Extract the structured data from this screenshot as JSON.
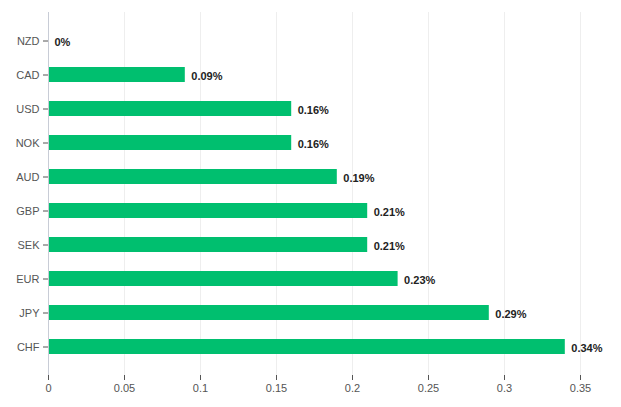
{
  "chart_data": {
    "type": "bar",
    "orientation": "horizontal",
    "categories": [
      "NZD",
      "CAD",
      "USD",
      "NOK",
      "AUD",
      "GBP",
      "SEK",
      "EUR",
      "JPY",
      "CHF"
    ],
    "values": [
      0,
      0.09,
      0.16,
      0.16,
      0.19,
      0.21,
      0.21,
      0.23,
      0.29,
      0.34
    ],
    "value_labels": [
      "0%",
      "0.09%",
      "0.16%",
      "0.16%",
      "0.19%",
      "0.21%",
      "0.21%",
      "0.23%",
      "0.29%",
      "0.34%"
    ],
    "data_labels": true,
    "color": "#00bf6f",
    "xlim": [
      0,
      0.35
    ],
    "xticks": [
      0,
      0.05,
      0.1,
      0.15,
      0.2,
      0.25,
      0.3,
      0.35
    ],
    "grid": true
  }
}
